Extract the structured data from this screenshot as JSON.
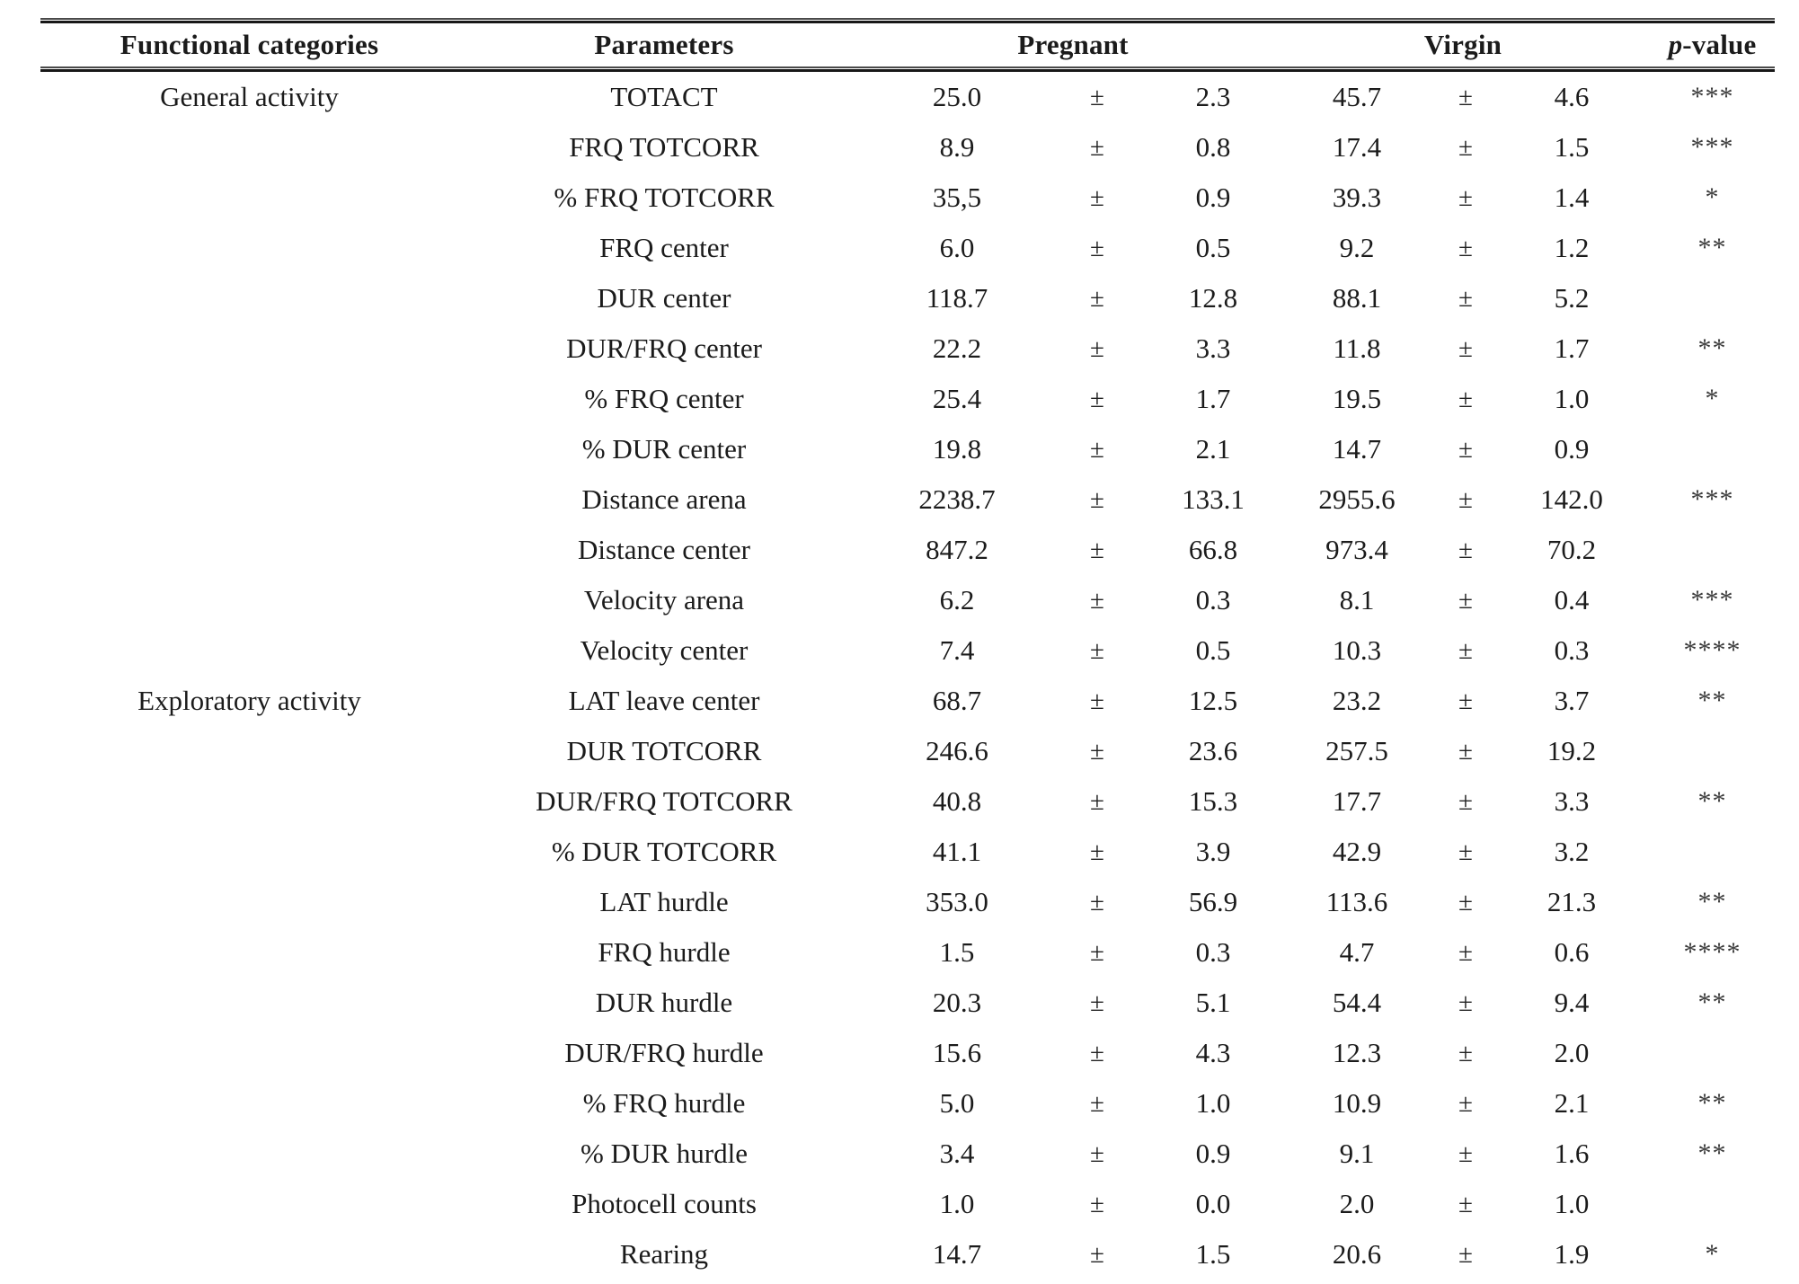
{
  "table": {
    "headers": {
      "functional_categories": "Functional categories",
      "parameters": "Parameters",
      "pregnant": "Pregnant",
      "virgin": "Virgin",
      "p_value_p": "p",
      "p_value_rest": "-value"
    },
    "plus_minus": "±",
    "rows": [
      {
        "category": "General activity",
        "parameter": "TOTACT",
        "pregnant_mean": "25.0",
        "pregnant_se": "2.3",
        "virgin_mean": "45.7",
        "virgin_se": "4.6",
        "significance": "***"
      },
      {
        "category": "",
        "parameter": "FRQ TOTCORR",
        "pregnant_mean": "8.9",
        "pregnant_se": "0.8",
        "virgin_mean": "17.4",
        "virgin_se": "1.5",
        "significance": "***"
      },
      {
        "category": "",
        "parameter": "% FRQ TOTCORR",
        "pregnant_mean": "35,5",
        "pregnant_se": "0.9",
        "virgin_mean": "39.3",
        "virgin_se": "1.4",
        "significance": "*"
      },
      {
        "category": "",
        "parameter": "FRQ center",
        "pregnant_mean": "6.0",
        "pregnant_se": "0.5",
        "virgin_mean": "9.2",
        "virgin_se": "1.2",
        "significance": "**"
      },
      {
        "category": "",
        "parameter": "DUR center",
        "pregnant_mean": "118.7",
        "pregnant_se": "12.8",
        "virgin_mean": "88.1",
        "virgin_se": "5.2",
        "significance": ""
      },
      {
        "category": "",
        "parameter": "DUR/FRQ center",
        "pregnant_mean": "22.2",
        "pregnant_se": "3.3",
        "virgin_mean": "11.8",
        "virgin_se": "1.7",
        "significance": "**"
      },
      {
        "category": "",
        "parameter": "% FRQ center",
        "pregnant_mean": "25.4",
        "pregnant_se": "1.7",
        "virgin_mean": "19.5",
        "virgin_se": "1.0",
        "significance": "*"
      },
      {
        "category": "",
        "parameter": "% DUR center",
        "pregnant_mean": "19.8",
        "pregnant_se": "2.1",
        "virgin_mean": "14.7",
        "virgin_se": "0.9",
        "significance": ""
      },
      {
        "category": "",
        "parameter": "Distance arena",
        "pregnant_mean": "2238.7",
        "pregnant_se": "133.1",
        "virgin_mean": "2955.6",
        "virgin_se": "142.0",
        "significance": "***"
      },
      {
        "category": "",
        "parameter": "Distance center",
        "pregnant_mean": "847.2",
        "pregnant_se": "66.8",
        "virgin_mean": "973.4",
        "virgin_se": "70.2",
        "significance": ""
      },
      {
        "category": "",
        "parameter": "Velocity arena",
        "pregnant_mean": "6.2",
        "pregnant_se": "0.3",
        "virgin_mean": "8.1",
        "virgin_se": "0.4",
        "significance": "***"
      },
      {
        "category": "",
        "parameter": "Velocity center",
        "pregnant_mean": "7.4",
        "pregnant_se": "0.5",
        "virgin_mean": "10.3",
        "virgin_se": "0.3",
        "significance": "****"
      },
      {
        "category": "Exploratory activity",
        "parameter": "LAT leave center",
        "pregnant_mean": "68.7",
        "pregnant_se": "12.5",
        "virgin_mean": "23.2",
        "virgin_se": "3.7",
        "significance": "**"
      },
      {
        "category": "",
        "parameter": "DUR TOTCORR",
        "pregnant_mean": "246.6",
        "pregnant_se": "23.6",
        "virgin_mean": "257.5",
        "virgin_se": "19.2",
        "significance": ""
      },
      {
        "category": "",
        "parameter": "DUR/FRQ TOTCORR",
        "pregnant_mean": "40.8",
        "pregnant_se": "15.3",
        "virgin_mean": "17.7",
        "virgin_se": "3.3",
        "significance": "**"
      },
      {
        "category": "",
        "parameter": "% DUR TOTCORR",
        "pregnant_mean": "41.1",
        "pregnant_se": "3.9",
        "virgin_mean": "42.9",
        "virgin_se": "3.2",
        "significance": ""
      },
      {
        "category": "",
        "parameter": "LAT hurdle",
        "pregnant_mean": "353.0",
        "pregnant_se": "56.9",
        "virgin_mean": "113.6",
        "virgin_se": "21.3",
        "significance": "**"
      },
      {
        "category": "",
        "parameter": "FRQ hurdle",
        "pregnant_mean": "1.5",
        "pregnant_se": "0.3",
        "virgin_mean": "4.7",
        "virgin_se": "0.6",
        "significance": "****"
      },
      {
        "category": "",
        "parameter": "DUR hurdle",
        "pregnant_mean": "20.3",
        "pregnant_se": "5.1",
        "virgin_mean": "54.4",
        "virgin_se": "9.4",
        "significance": "**"
      },
      {
        "category": "",
        "parameter": "DUR/FRQ hurdle",
        "pregnant_mean": "15.6",
        "pregnant_se": "4.3",
        "virgin_mean": "12.3",
        "virgin_se": "2.0",
        "significance": ""
      },
      {
        "category": "",
        "parameter": "% FRQ hurdle",
        "pregnant_mean": "5.0",
        "pregnant_se": "1.0",
        "virgin_mean": "10.9",
        "virgin_se": "2.1",
        "significance": "**"
      },
      {
        "category": "",
        "parameter": "% DUR hurdle",
        "pregnant_mean": "3.4",
        "pregnant_se": "0.9",
        "virgin_mean": "9.1",
        "virgin_se": "1.6",
        "significance": "**"
      },
      {
        "category": "",
        "parameter": "Photocell counts",
        "pregnant_mean": "1.0",
        "pregnant_se": "0.0",
        "virgin_mean": "2.0",
        "virgin_se": "1.0",
        "significance": ""
      },
      {
        "category": "",
        "parameter": "Rearing",
        "pregnant_mean": "14.7",
        "pregnant_se": "1.5",
        "virgin_mean": "20.6",
        "virgin_se": "1.9",
        "significance": "*"
      }
    ]
  }
}
